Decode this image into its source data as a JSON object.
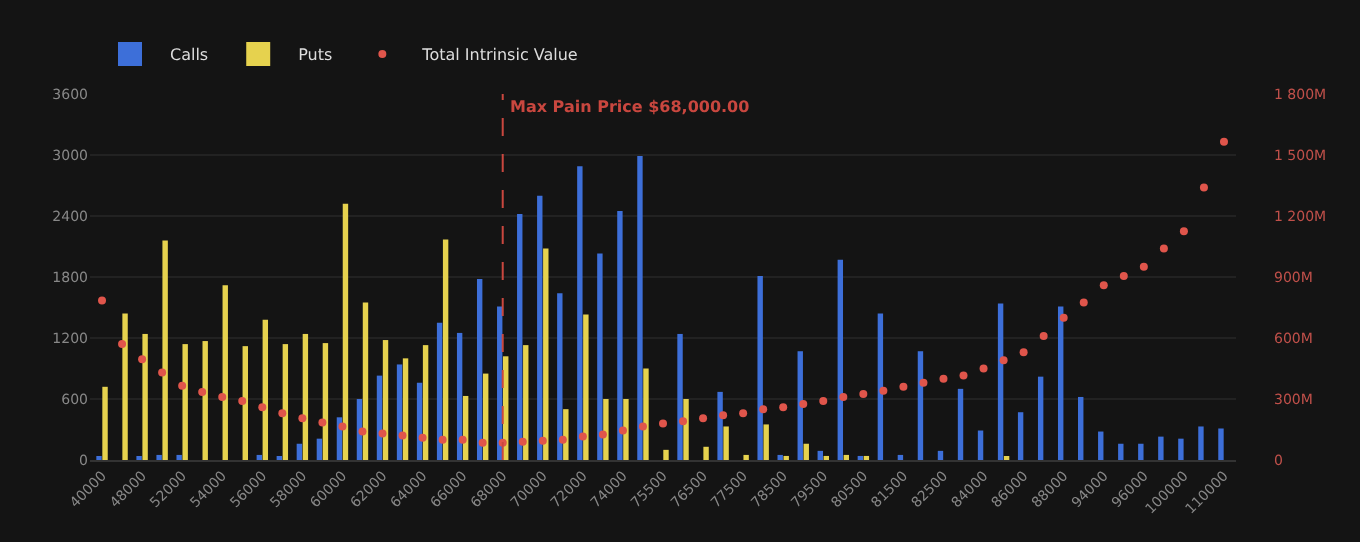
{
  "chart_data": {
    "type": "bar",
    "categories": [
      "40000",
      null,
      "48000",
      null,
      "52000",
      null,
      "54000",
      null,
      "56000",
      null,
      "58000",
      null,
      "60000",
      null,
      "62000",
      null,
      "64000",
      null,
      "66000",
      null,
      "68000",
      null,
      "70000",
      null,
      "72000",
      null,
      "74000",
      null,
      "75500",
      null,
      "76500",
      null,
      "77500",
      null,
      "78500",
      null,
      "79500",
      null,
      "80500",
      null,
      "81500",
      null,
      "82500",
      null,
      "84000",
      null,
      "86000",
      null,
      "88000",
      null,
      "94000",
      null,
      "96000",
      null,
      "100000",
      null,
      "110000"
    ],
    "series": [
      {
        "name": "Calls",
        "color": "#3d6fd9",
        "values": [
          20,
          0,
          30,
          50,
          50,
          0,
          0,
          0,
          50,
          20,
          160,
          210,
          420,
          600,
          830,
          940,
          760,
          1350,
          1250,
          1780,
          1510,
          2420,
          2600,
          1640,
          2890,
          2030,
          2450,
          2990,
          0,
          1240,
          0,
          670,
          0,
          1810,
          50,
          1070,
          90,
          1970,
          40,
          1440,
          50,
          1070,
          90,
          700,
          290,
          1540,
          470,
          820,
          1510,
          620,
          280,
          160,
          160,
          230,
          210,
          330,
          310
        ]
      },
      {
        "name": "Puts",
        "color": "#e6d24e",
        "values": [
          720,
          1440,
          1240,
          2160,
          1140,
          1170,
          1720,
          1120,
          1380,
          1140,
          1240,
          1150,
          2520,
          1550,
          1180,
          1000,
          1130,
          2170,
          630,
          850,
          1020,
          1130,
          2080,
          500,
          1430,
          600,
          600,
          900,
          100,
          600,
          130,
          330,
          50,
          350,
          40,
          160,
          40,
          50,
          40,
          0,
          0,
          0,
          0,
          0,
          0,
          20,
          0,
          0,
          0,
          0,
          0,
          0,
          0,
          0,
          0,
          0,
          0
        ]
      },
      {
        "name": "Total Intrinsic Value",
        "type": "scatter",
        "axis": "y2",
        "color": "#e0554b",
        "values": [
          785,
          570,
          495,
          430,
          365,
          335,
          310,
          290,
          260,
          230,
          205,
          185,
          165,
          140,
          130,
          120,
          110,
          100,
          100,
          85,
          85,
          90,
          95,
          100,
          115,
          125,
          145,
          165,
          180,
          190,
          205,
          220,
          230,
          250,
          260,
          275,
          290,
          310,
          325,
          340,
          360,
          380,
          400,
          415,
          450,
          490,
          530,
          610,
          700,
          775,
          860,
          905,
          950,
          1040,
          1125,
          1340,
          1565
        ]
      }
    ],
    "ylim": [
      0,
      3600
    ],
    "yticks": [
      0,
      600,
      1200,
      1800,
      2400,
      3000,
      3600
    ],
    "y2lim": [
      0,
      1800
    ],
    "y2ticks": [
      {
        "value": 0,
        "label": "0"
      },
      {
        "value": 300,
        "label": "300M"
      },
      {
        "value": 600,
        "label": "600M"
      },
      {
        "value": 900,
        "label": "900M"
      },
      {
        "value": 1200,
        "label": "1 200M"
      },
      {
        "value": 1500,
        "label": "1 500M"
      },
      {
        "value": 1800,
        "label": "1 800M"
      }
    ],
    "ref_lines": [
      {
        "axis": "x",
        "value": "68000",
        "label": "Max Pain Price $68,000.00",
        "color": "#c9473f",
        "line_style": "dashed"
      }
    ],
    "grid": "y",
    "legend": "top left",
    "marker": "circle"
  }
}
